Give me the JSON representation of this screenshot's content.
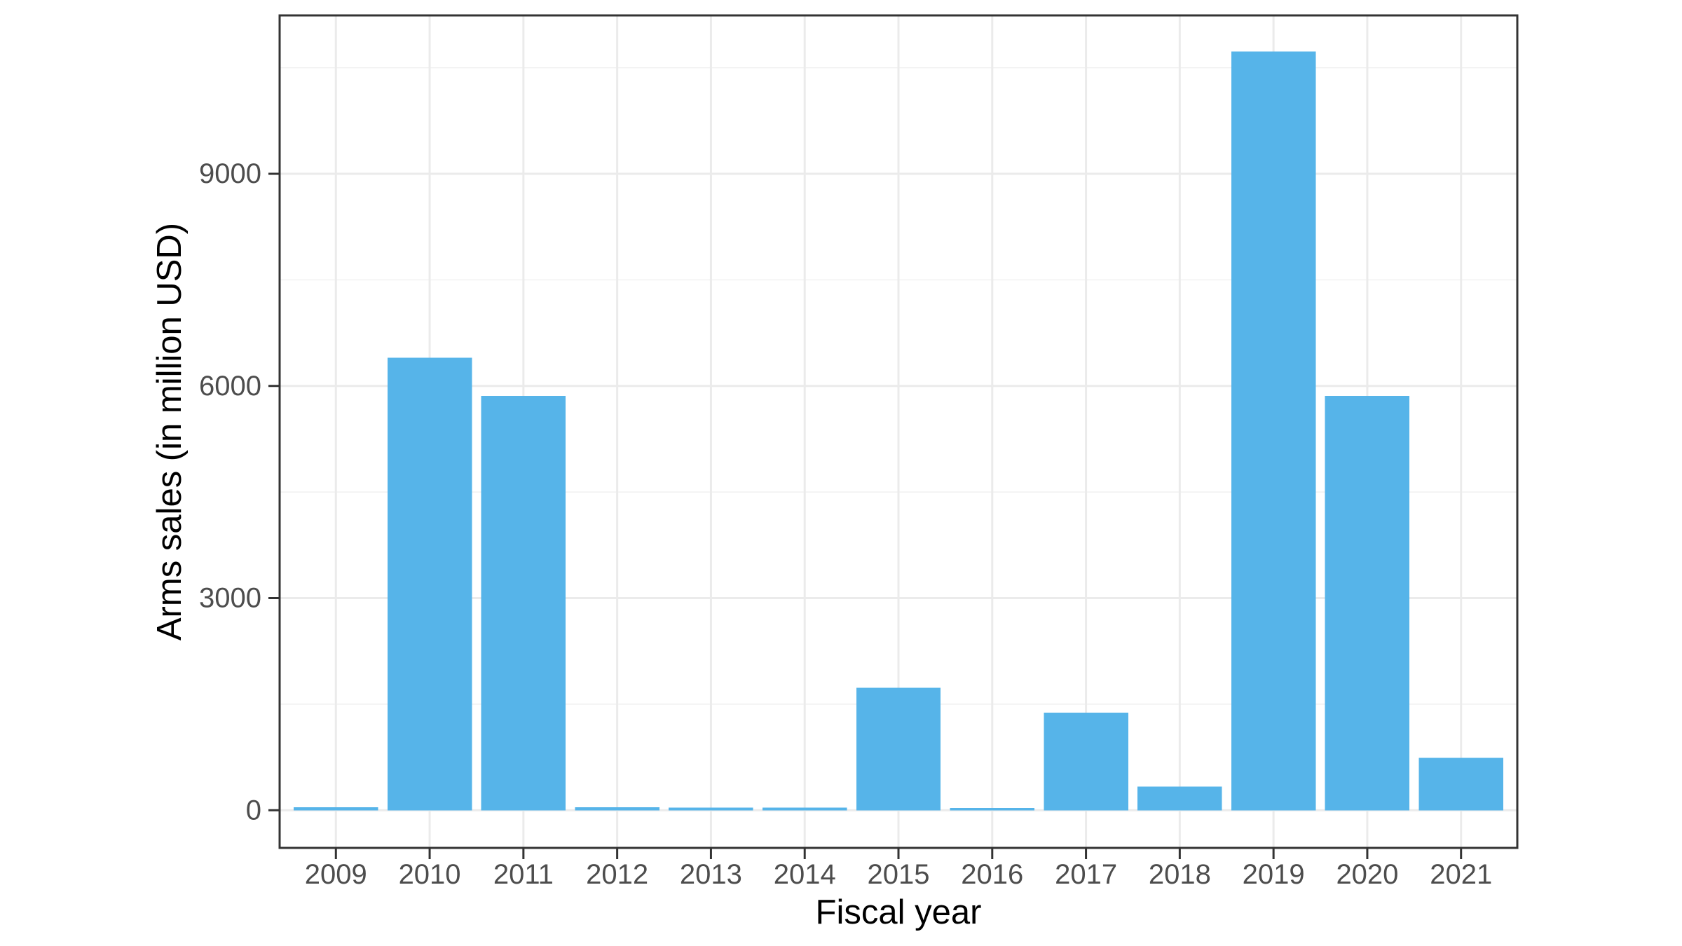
{
  "chart_data": {
    "type": "bar",
    "title": "",
    "xlabel": "Fiscal year",
    "ylabel": "Arms sales (in million USD)",
    "categories": [
      "2009",
      "2010",
      "2011",
      "2012",
      "2013",
      "2014",
      "2015",
      "2016",
      "2017",
      "2018",
      "2019",
      "2020",
      "2021"
    ],
    "values": [
      40,
      6400,
      5860,
      40,
      35,
      35,
      1730,
      30,
      1380,
      335,
      10730,
      5860,
      740
    ],
    "ytick_values": [
      0,
      3000,
      6000,
      9000
    ],
    "ytick_labels": [
      "0",
      "3000",
      "6000",
      "9000"
    ],
    "minor_gridline_values": [
      1500,
      4500,
      7500,
      10500
    ],
    "ylim": [
      -540,
      11265
    ],
    "grid": "on",
    "legend": "none",
    "bar_color": "#56B4E9"
  },
  "colors": {
    "background": "#FFFFFF",
    "bar_fill": "#56B4E9",
    "panel_border": "#333333",
    "tick_mark": "#333333",
    "grid_major": "#EBEBEB",
    "grid_minor": "#F1F1F1",
    "tick_label": "#4D4D4D",
    "axis_title": "#000000"
  }
}
